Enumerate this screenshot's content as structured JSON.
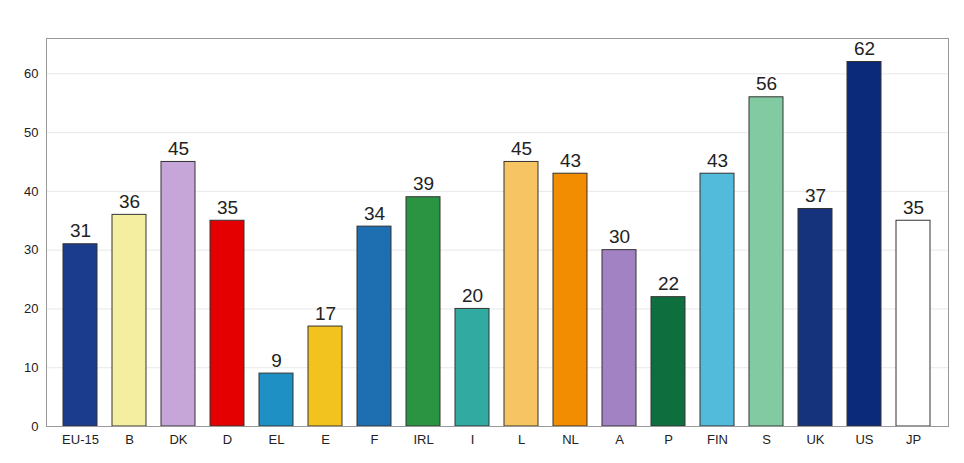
{
  "chart_data": {
    "type": "bar",
    "categories": [
      "EU-15",
      "B",
      "DK",
      "D",
      "EL",
      "E",
      "F",
      "IRL",
      "I",
      "L",
      "NL",
      "A",
      "P",
      "FIN",
      "S",
      "UK",
      "US",
      "JP"
    ],
    "values": [
      31,
      36,
      45,
      35,
      9,
      17,
      34,
      39,
      20,
      45,
      43,
      30,
      22,
      43,
      56,
      37,
      62,
      35
    ],
    "colors": [
      "#1b3c8c",
      "#f4efa0",
      "#c6a6d8",
      "#e40000",
      "#1f90c4",
      "#f2c21e",
      "#1e6fb2",
      "#2a9442",
      "#31aaa2",
      "#f6c462",
      "#f28c00",
      "#a382c4",
      "#0f6e3e",
      "#52bada",
      "#82caa2",
      "#15337c",
      "#0b2b7a",
      "#ffffff"
    ],
    "ylim": [
      0,
      66
    ],
    "yticks": [
      0,
      10,
      20,
      30,
      40,
      50,
      60
    ],
    "grid": true,
    "data_labels": true
  }
}
